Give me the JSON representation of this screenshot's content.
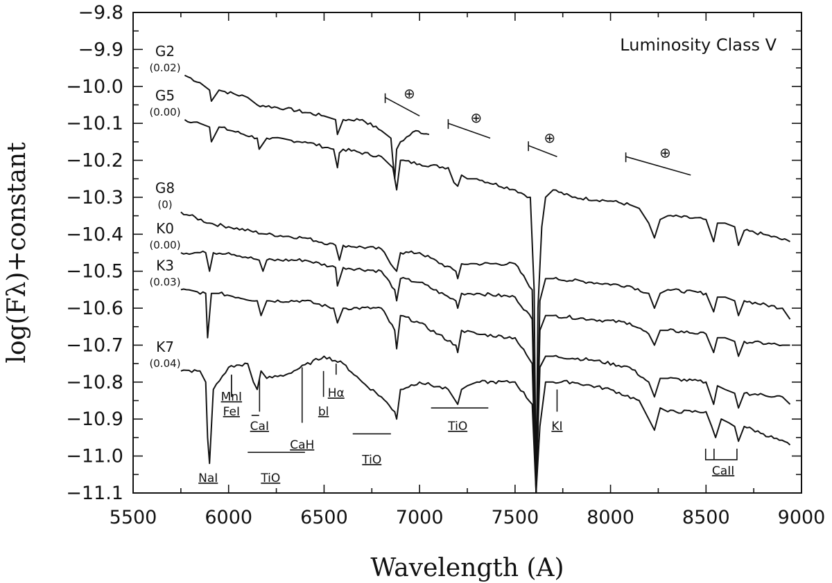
{
  "chart_data": {
    "type": "line",
    "title": "Luminosity Class V",
    "xlabel": "Wavelength (A)",
    "ylabel": "log(Fλ)+constant",
    "xlim": [
      5500,
      9000
    ],
    "ylim": [
      -11.1,
      -9.8
    ],
    "x_ticks": [
      "5500",
      "6000",
      "6500",
      "7000",
      "7500",
      "8000",
      "8500",
      "9000"
    ],
    "y_ticks": [
      "-9.8",
      "-9.9",
      "-10.0",
      "-10.1",
      "-10.2",
      "-10.3",
      "-10.4",
      "-10.5",
      "-10.6",
      "-10.7",
      "-10.8",
      "-10.9",
      "-11.0",
      "-11.1"
    ],
    "grid": false,
    "series": [
      {
        "name": "G2",
        "sub": "(0.02)",
        "x": [
          5770,
          5850,
          5900,
          5910,
          5950,
          6100,
          6150,
          6300,
          6500,
          6560,
          6570,
          6600,
          6700,
          6800,
          6850,
          6860,
          6870,
          6880,
          6900,
          6980,
          7050
        ],
        "y": [
          -9.97,
          -9.99,
          -10.01,
          -10.04,
          -10.01,
          -10.03,
          -10.05,
          -10.06,
          -10.08,
          -10.09,
          -10.13,
          -10.09,
          -10.09,
          -10.12,
          -10.14,
          -10.2,
          -10.25,
          -10.17,
          -10.15,
          -10.12,
          -10.13
        ]
      },
      {
        "name": "G5",
        "sub": "(0.00)",
        "x": [
          5770,
          5850,
          5900,
          5910,
          5950,
          6150,
          6160,
          6200,
          6400,
          6550,
          6570,
          6580,
          6600,
          6800,
          6860,
          6880,
          6900,
          7000,
          7150,
          7180,
          7200,
          7220,
          7250,
          7300,
          7500,
          7580,
          7600,
          7610,
          7620,
          7640,
          7660,
          7700,
          7800,
          8000,
          8100,
          8150,
          8200,
          8230,
          8260,
          8300,
          8500,
          8540,
          8560,
          8600,
          8650,
          8670,
          8700,
          8800,
          8940
        ],
        "y": [
          -10.09,
          -10.1,
          -10.11,
          -10.15,
          -10.11,
          -10.14,
          -10.17,
          -10.14,
          -10.15,
          -10.17,
          -10.22,
          -10.18,
          -10.17,
          -10.19,
          -10.22,
          -10.28,
          -10.2,
          -10.21,
          -10.22,
          -10.26,
          -10.27,
          -10.24,
          -10.25,
          -10.25,
          -10.28,
          -10.3,
          -10.55,
          -11.1,
          -10.6,
          -10.38,
          -10.3,
          -10.28,
          -10.3,
          -10.31,
          -10.32,
          -10.33,
          -10.37,
          -10.41,
          -10.36,
          -10.35,
          -10.36,
          -10.42,
          -10.37,
          -10.37,
          -10.38,
          -10.43,
          -10.39,
          -10.4,
          -10.42
        ]
      },
      {
        "name": "G8",
        "sub": "(0)",
        "x": [
          5750,
          5900,
          6000,
          6200,
          6400,
          6560,
          6580,
          6600,
          6800,
          6880,
          6900,
          7000,
          7190,
          7200,
          7220,
          7300,
          7500,
          7590,
          7610,
          7630,
          7660,
          7700,
          7900,
          8100,
          8200,
          8230,
          8260,
          8300,
          8500,
          8540,
          8560,
          8600,
          8650,
          8670,
          8700,
          8900,
          8940
        ],
        "y": [
          -10.34,
          -10.37,
          -10.38,
          -10.4,
          -10.41,
          -10.43,
          -10.47,
          -10.43,
          -10.44,
          -10.5,
          -10.45,
          -10.45,
          -10.5,
          -10.52,
          -10.48,
          -10.48,
          -10.48,
          -10.55,
          -11.1,
          -10.58,
          -10.52,
          -10.52,
          -10.53,
          -10.54,
          -10.56,
          -10.6,
          -10.56,
          -10.55,
          -10.56,
          -10.61,
          -10.57,
          -10.57,
          -10.58,
          -10.62,
          -10.58,
          -10.6,
          -10.63
        ]
      },
      {
        "name": "K0",
        "sub": "(0.00)",
        "x": [
          5750,
          5880,
          5900,
          5920,
          6000,
          6160,
          6180,
          6200,
          6400,
          6560,
          6570,
          6600,
          6800,
          6870,
          6880,
          6900,
          7000,
          7190,
          7200,
          7220,
          7300,
          7500,
          7590,
          7610,
          7630,
          7660,
          7700,
          7900,
          8100,
          8200,
          8230,
          8260,
          8300,
          8500,
          8540,
          8560,
          8600,
          8650,
          8670,
          8700,
          8900,
          8940
        ],
        "y": [
          -10.45,
          -10.45,
          -10.5,
          -10.45,
          -10.45,
          -10.47,
          -10.5,
          -10.47,
          -10.47,
          -10.49,
          -10.54,
          -10.49,
          -10.5,
          -10.55,
          -10.58,
          -10.52,
          -10.53,
          -10.58,
          -10.6,
          -10.56,
          -10.56,
          -10.57,
          -10.63,
          -11.1,
          -10.66,
          -10.62,
          -10.62,
          -10.63,
          -10.64,
          -10.67,
          -10.7,
          -10.66,
          -10.66,
          -10.67,
          -10.72,
          -10.68,
          -10.68,
          -10.69,
          -10.73,
          -10.69,
          -10.7,
          -10.7
        ]
      },
      {
        "name": "K3",
        "sub": "(0.03)",
        "x": [
          5750,
          5880,
          5890,
          5910,
          5950,
          6150,
          6170,
          6200,
          6400,
          6550,
          6570,
          6600,
          6800,
          6870,
          6880,
          6900,
          7000,
          7190,
          7200,
          7220,
          7300,
          7500,
          7590,
          7610,
          7630,
          7660,
          7700,
          7900,
          8100,
          8200,
          8230,
          8260,
          8300,
          8500,
          8540,
          8560,
          8600,
          8650,
          8670,
          8700,
          8900,
          8940
        ],
        "y": [
          -10.55,
          -10.56,
          -10.68,
          -10.56,
          -10.56,
          -10.58,
          -10.62,
          -10.58,
          -10.58,
          -10.6,
          -10.64,
          -10.6,
          -10.6,
          -10.66,
          -10.71,
          -10.62,
          -10.64,
          -10.7,
          -10.72,
          -10.66,
          -10.67,
          -10.68,
          -10.75,
          -11.1,
          -10.76,
          -10.73,
          -10.73,
          -10.74,
          -10.76,
          -10.8,
          -10.84,
          -10.79,
          -10.79,
          -10.8,
          -10.86,
          -10.81,
          -10.82,
          -10.83,
          -10.87,
          -10.83,
          -10.84,
          -10.86
        ]
      },
      {
        "name": "K7",
        "sub": "(0.04)",
        "x": [
          5750,
          5850,
          5880,
          5890,
          5900,
          5920,
          6000,
          6100,
          6130,
          6150,
          6170,
          6200,
          6300,
          6500,
          6600,
          6700,
          6800,
          6870,
          6880,
          6900,
          7000,
          7150,
          7200,
          7220,
          7250,
          7300,
          7500,
          7590,
          7610,
          7630,
          7660,
          7700,
          7800,
          8000,
          8150,
          8200,
          8230,
          8260,
          8300,
          8500,
          8530,
          8550,
          8580,
          8620,
          8650,
          8670,
          8700,
          8800,
          8940
        ],
        "y": [
          -10.77,
          -10.77,
          -10.8,
          -10.95,
          -11.02,
          -10.82,
          -10.76,
          -10.75,
          -10.8,
          -10.82,
          -10.77,
          -10.79,
          -10.78,
          -10.73,
          -10.75,
          -10.8,
          -10.84,
          -10.88,
          -10.9,
          -10.82,
          -10.8,
          -10.82,
          -10.86,
          -10.82,
          -10.81,
          -10.8,
          -10.8,
          -10.86,
          -11.1,
          -10.92,
          -10.8,
          -10.8,
          -10.8,
          -10.82,
          -10.85,
          -10.9,
          -10.93,
          -10.87,
          -10.88,
          -10.88,
          -10.92,
          -10.95,
          -10.9,
          -10.91,
          -10.92,
          -10.96,
          -10.92,
          -10.94,
          -10.97
        ]
      }
    ],
    "telluric_symbol": "⊕",
    "features": [
      {
        "label": "MnI",
        "x": 6015,
        "from_y": -10.78,
        "to_y": -10.84,
        "text_y": -10.85
      },
      {
        "label": "FeI",
        "x": 6015,
        "from_y": -10.78,
        "to_y": -10.84,
        "text_y": -10.89
      },
      {
        "label": "CaI",
        "x": 6162,
        "from_y": -10.79,
        "to_y": -10.88,
        "text_y": -10.93
      },
      {
        "label": "CaH",
        "x": 6385,
        "from_y": -10.76,
        "to_y": -10.91,
        "text_y": -10.98
      },
      {
        "label": "bl",
        "x": 6497,
        "from_y": -10.77,
        "to_y": -10.84,
        "text_y": -10.89
      },
      {
        "label": "Hα",
        "x": 6563,
        "from_y": -10.75,
        "to_y": -10.78,
        "text_y": -10.84
      },
      {
        "label": "TiO",
        "x": 7200,
        "text_y": -10.93
      },
      {
        "label": "TiO",
        "x": 6750,
        "text_y": -11.02
      },
      {
        "label": "NaI",
        "x": 5893,
        "text_y": -11.07
      },
      {
        "label": "TiO",
        "x": 6220,
        "text_y": -11.07
      },
      {
        "label": "KI",
        "x": 7720,
        "from_y": -10.82,
        "to_y": -10.88,
        "text_y": -10.93
      },
      {
        "label": "CaII",
        "x": 8590,
        "text_y": -11.05
      }
    ]
  }
}
